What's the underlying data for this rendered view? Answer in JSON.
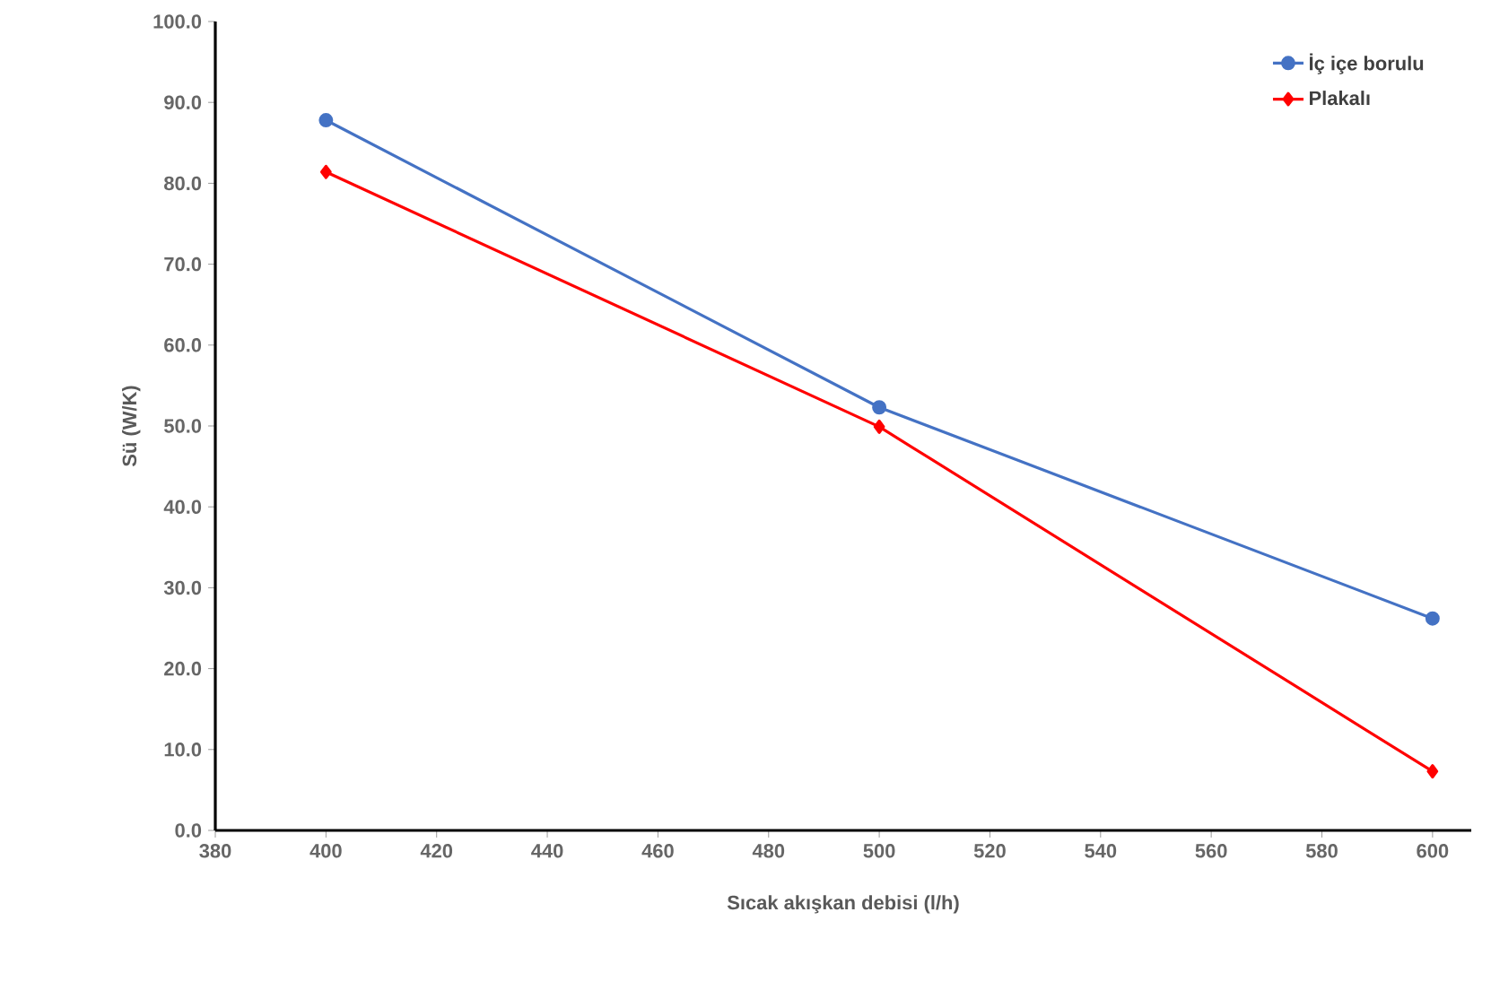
{
  "chart_data": {
    "type": "line",
    "xlabel": "Sıcak akışkan debisi (l/h)",
    "ylabel": "Sü (W/K)",
    "x": [
      400,
      500,
      600
    ],
    "series": [
      {
        "name": "İç içe borulu",
        "color": "#4472c4",
        "marker": "circle",
        "values": [
          87.8,
          52.3,
          26.2
        ]
      },
      {
        "name": "Plakalı",
        "color": "#ff0000",
        "marker": "diamond",
        "values": [
          81.4,
          49.9,
          7.3
        ]
      }
    ],
    "xlim": [
      380,
      607
    ],
    "xticks": [
      380,
      400,
      420,
      440,
      460,
      480,
      500,
      520,
      540,
      560,
      580,
      600
    ],
    "ylim": [
      0,
      100
    ],
    "yticks": [
      {
        "value": 0,
        "label": "0.0"
      },
      {
        "value": 10,
        "label": "10.0"
      },
      {
        "value": 20,
        "label": "20.0"
      },
      {
        "value": 30,
        "label": "30.0"
      },
      {
        "value": 40,
        "label": "40.0"
      },
      {
        "value": 50,
        "label": "50.0"
      },
      {
        "value": 60,
        "label": "60.0"
      },
      {
        "value": 70,
        "label": "70.0"
      },
      {
        "value": 80,
        "label": "80.0"
      },
      {
        "value": 90,
        "label": "90.0"
      },
      {
        "value": 100,
        "label": "100.0"
      }
    ],
    "grid": false,
    "legend": "top right",
    "line_style": "solid"
  }
}
